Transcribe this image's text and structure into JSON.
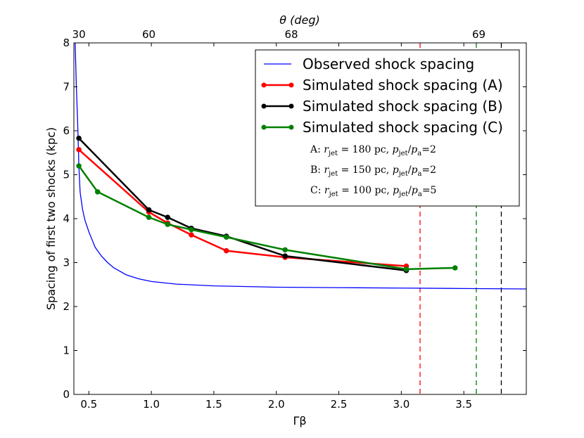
{
  "chart_data": {
    "type": "line",
    "xlabel": "Γβ",
    "ylabel": "Spacing of first two shocks (kpc)",
    "top_axis_label": "θ (deg)",
    "xlim": [
      0.38,
      4.0
    ],
    "ylim": [
      0,
      8
    ],
    "x_ticks": [
      0.5,
      1.0,
      1.5,
      2.0,
      2.5,
      3.0,
      3.5
    ],
    "x_tick_labels": [
      "0.5",
      "1.0",
      "1.5",
      "2.0",
      "2.5",
      "3.0",
      "3.5"
    ],
    "y_ticks": [
      0,
      1,
      2,
      3,
      4,
      5,
      6,
      7,
      8
    ],
    "y_tick_labels": [
      "0",
      "1",
      "2",
      "3",
      "4",
      "5",
      "6",
      "7",
      "8"
    ],
    "top_ticks": [
      {
        "x": 0.42,
        "label": "30"
      },
      {
        "x": 0.98,
        "label": "60"
      },
      {
        "x": 2.12,
        "label": "68"
      },
      {
        "x": 3.62,
        "label": "69"
      }
    ],
    "observed": {
      "name": "Observed shock spacing",
      "color": "#0000ff",
      "x": [
        0.39,
        0.4,
        0.41,
        0.42,
        0.43,
        0.45,
        0.47,
        0.5,
        0.55,
        0.6,
        0.65,
        0.7,
        0.8,
        0.9,
        1.0,
        1.2,
        1.5,
        2.0,
        2.5,
        3.0,
        3.5,
        4.0
      ],
      "y": [
        8.0,
        7.0,
        6.2,
        5.2,
        4.6,
        4.2,
        3.95,
        3.7,
        3.35,
        3.15,
        3.0,
        2.88,
        2.72,
        2.63,
        2.57,
        2.51,
        2.47,
        2.44,
        2.43,
        2.42,
        2.41,
        2.4
      ]
    },
    "series": [
      {
        "name": "Simulated shock spacing (A)",
        "color": "#ff0000",
        "x": [
          0.42,
          0.98,
          1.13,
          1.32,
          1.6,
          2.07,
          3.04
        ],
        "y": [
          5.57,
          4.15,
          3.9,
          3.63,
          3.27,
          3.12,
          2.92
        ]
      },
      {
        "name": "Simulated shock spacing (B)",
        "color": "#000000",
        "x": [
          0.42,
          0.98,
          1.13,
          1.32,
          1.6,
          2.07,
          3.04
        ],
        "y": [
          5.83,
          4.2,
          4.03,
          3.78,
          3.6,
          3.15,
          2.82
        ]
      },
      {
        "name": "Simulated shock spacing (C)",
        "color": "#008000",
        "x": [
          0.42,
          0.57,
          0.98,
          1.13,
          1.32,
          1.6,
          2.07,
          3.04,
          3.43
        ],
        "y": [
          5.2,
          4.61,
          4.03,
          3.87,
          3.75,
          3.58,
          3.29,
          2.85,
          2.88
        ]
      }
    ],
    "vlines": [
      {
        "x": 3.15,
        "color": "#ff0000",
        "style": "dashed"
      },
      {
        "x": 3.6,
        "color": "#008000",
        "style": "dashed"
      },
      {
        "x": 3.8,
        "color": "#000000",
        "style": "dashed"
      }
    ],
    "legend_position": "top-right",
    "legend_notes": [
      {
        "prefix": "A: ",
        "radius_value": "= 180 pc, ",
        "ratio_value": "=2"
      },
      {
        "prefix": "B: ",
        "radius_value": "= 150 pc, ",
        "ratio_value": "=2"
      },
      {
        "prefix": "C: ",
        "radius_value": "= 100 pc, ",
        "ratio_value": "=5"
      }
    ],
    "note_symbols": {
      "r": "r",
      "r_sub": "jet",
      "p": "p",
      "p_jet_sub": "jet",
      "p_a_sub": "a"
    }
  }
}
